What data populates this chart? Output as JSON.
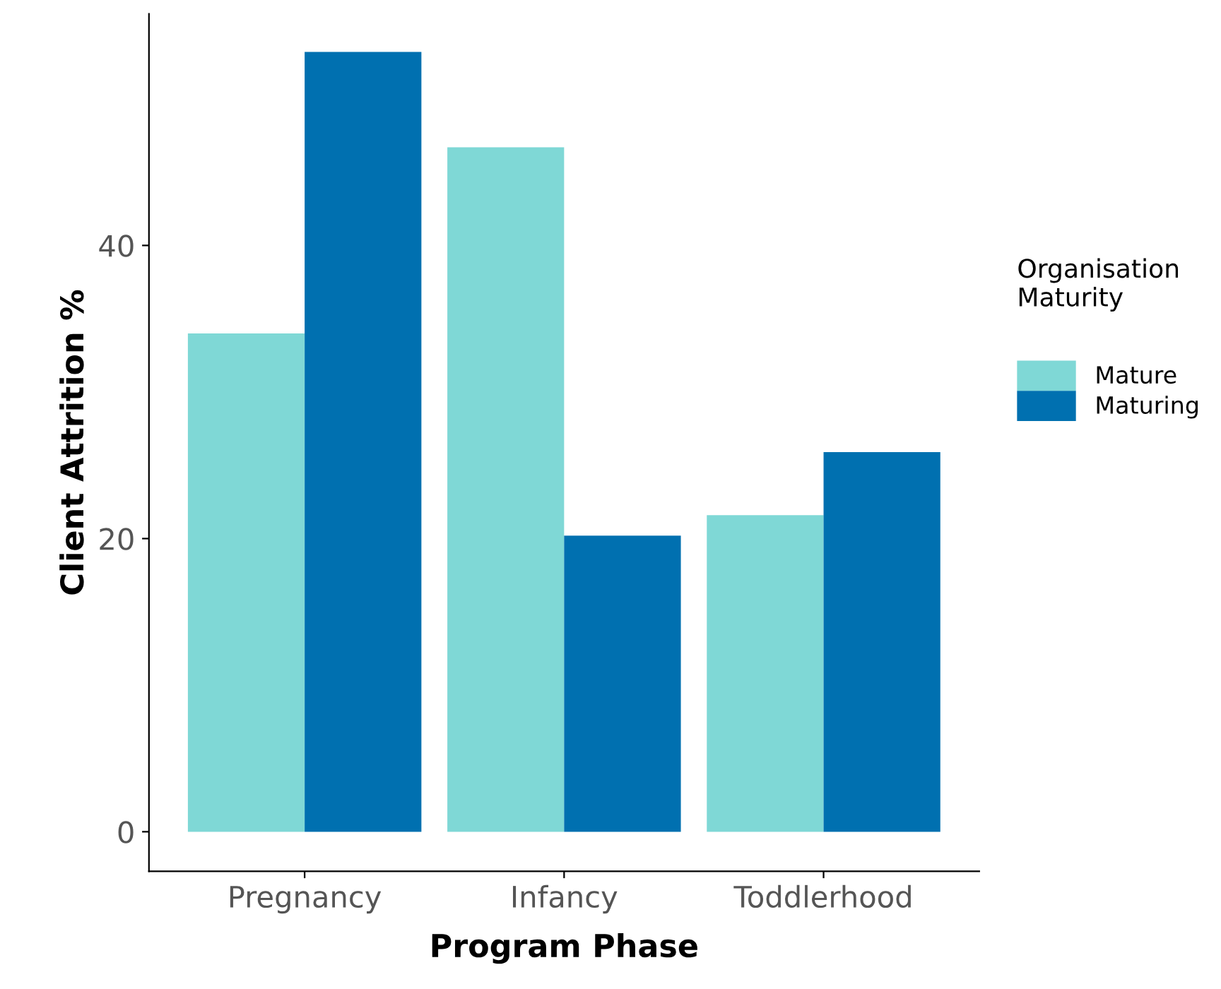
{
  "chart_data": {
    "type": "bar",
    "xlabel": "Program Phase",
    "ylabel": "Client Attrition %",
    "legend_title": "Organisation\nMaturity",
    "categories": [
      "Pregnancy",
      "Infancy",
      "Toddlerhood"
    ],
    "series": [
      {
        "name": "Mature",
        "color": "#7fd8d6",
        "values": [
          34,
          46.7,
          21.6
        ]
      },
      {
        "name": "Maturing",
        "color": "#0070b0",
        "values": [
          53.2,
          20.2,
          25.9
        ]
      }
    ],
    "ylim": [
      -2.7,
      55.8
    ],
    "yticks": [
      0,
      20,
      40
    ],
    "grid": false,
    "legend": "right"
  }
}
